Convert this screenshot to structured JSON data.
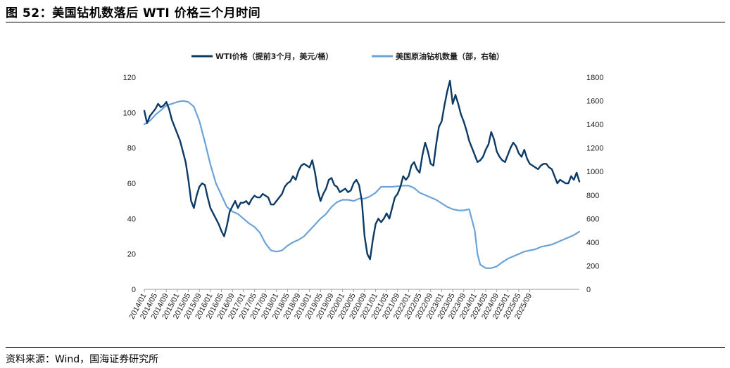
{
  "title": "图 52：美国钻机数落后 WTI 价格三个月时间",
  "source": "资料来源：Wind，国海证券研究所",
  "chart_data": {
    "type": "line",
    "title": "",
    "xlabel": "",
    "ylabel": "",
    "legend_position": "top-center",
    "grid": false,
    "colors": {
      "wti": "#0c3a66",
      "rigs": "#6ba3d8"
    },
    "x_tick_labels": [
      "2014/01",
      "2014/05",
      "2014/09",
      "2015/01",
      "2015/05",
      "2015/09",
      "2016/01",
      "2016/05",
      "2016/09",
      "2017/01",
      "2017/05",
      "2017/09",
      "2018/01",
      "2018/05",
      "2018/09",
      "2019/01",
      "2019/05",
      "2019/09",
      "2020/01",
      "2020/05",
      "2020/09",
      "2021/01",
      "2021/05",
      "2021/09",
      "2022/01",
      "2022/05",
      "2022/09",
      "2023/01",
      "2023/05",
      "2023/09",
      "2024/01",
      "2024/05",
      "2024/09",
      "2025/01",
      "2025/05",
      "2025/09"
    ],
    "y_left": {
      "min": 0,
      "max": 120,
      "ticks": [
        0,
        20,
        40,
        60,
        80,
        100,
        120
      ]
    },
    "y_right": {
      "min": 0,
      "max": 1800,
      "ticks": [
        0,
        200,
        400,
        600,
        800,
        1000,
        1200,
        1400,
        1600,
        1800
      ]
    },
    "series": [
      {
        "name": "WTI价格（提前3个月，美元/桶）",
        "axis": "left",
        "points": [
          [
            "2014/01",
            101
          ],
          [
            "2014/02",
            94
          ],
          [
            "2014/03",
            98
          ],
          [
            "2014/04",
            100
          ],
          [
            "2014/05",
            102
          ],
          [
            "2014/06",
            105
          ],
          [
            "2014/07",
            103
          ],
          [
            "2014/08",
            104
          ],
          [
            "2014/09",
            106
          ],
          [
            "2014/10",
            102
          ],
          [
            "2014/11",
            96
          ],
          [
            "2014/12",
            92
          ],
          [
            "2015/01",
            88
          ],
          [
            "2015/02",
            84
          ],
          [
            "2015/03",
            78
          ],
          [
            "2015/04",
            72
          ],
          [
            "2015/05",
            62
          ],
          [
            "2015/06",
            50
          ],
          [
            "2015/07",
            46
          ],
          [
            "2015/08",
            53
          ],
          [
            "2015/09",
            58
          ],
          [
            "2015/10",
            60
          ],
          [
            "2015/11",
            59
          ],
          [
            "2015/12",
            52
          ],
          [
            "2016/01",
            46
          ],
          [
            "2016/02",
            43
          ],
          [
            "2016/03",
            40
          ],
          [
            "2016/04",
            37
          ],
          [
            "2016/05",
            33
          ],
          [
            "2016/06",
            30
          ],
          [
            "2016/07",
            36
          ],
          [
            "2016/08",
            44
          ],
          [
            "2016/09",
            47
          ],
          [
            "2016/10",
            50
          ],
          [
            "2016/11",
            46
          ],
          [
            "2016/12",
            49
          ],
          [
            "2017/01",
            49
          ],
          [
            "2017/02",
            50
          ],
          [
            "2017/03",
            48
          ],
          [
            "2017/04",
            51
          ],
          [
            "2017/05",
            53
          ],
          [
            "2017/06",
            52
          ],
          [
            "2017/07",
            52
          ],
          [
            "2017/08",
            54
          ],
          [
            "2017/09",
            53
          ],
          [
            "2017/10",
            52
          ],
          [
            "2017/11",
            48
          ],
          [
            "2017/12",
            48
          ],
          [
            "2018/01",
            50
          ],
          [
            "2018/02",
            52
          ],
          [
            "2018/03",
            54
          ],
          [
            "2018/04",
            58
          ],
          [
            "2018/05",
            60
          ],
          [
            "2018/06",
            61
          ],
          [
            "2018/07",
            64
          ],
          [
            "2018/08",
            62
          ],
          [
            "2018/09",
            67
          ],
          [
            "2018/10",
            70
          ],
          [
            "2018/11",
            71
          ],
          [
            "2018/12",
            70
          ],
          [
            "2019/01",
            69
          ],
          [
            "2019/02",
            73
          ],
          [
            "2019/03",
            66
          ],
          [
            "2019/04",
            56
          ],
          [
            "2019/05",
            50
          ],
          [
            "2019/06",
            54
          ],
          [
            "2019/07",
            57
          ],
          [
            "2019/08",
            62
          ],
          [
            "2019/09",
            63
          ],
          [
            "2019/10",
            59
          ],
          [
            "2019/11",
            58
          ],
          [
            "2019/12",
            55
          ],
          [
            "2020/01",
            56
          ],
          [
            "2020/02",
            57
          ],
          [
            "2020/03",
            55
          ],
          [
            "2020/04",
            56
          ],
          [
            "2020/05",
            60
          ],
          [
            "2020/06",
            62
          ],
          [
            "2020/07",
            59
          ],
          [
            "2020/08",
            50
          ],
          [
            "2020/09",
            30
          ],
          [
            "2020/10",
            20
          ],
          [
            "2020/11",
            17
          ],
          [
            "2020/12",
            28
          ],
          [
            "2021/01",
            37
          ],
          [
            "2021/02",
            40
          ],
          [
            "2021/03",
            38
          ],
          [
            "2021/04",
            40
          ],
          [
            "2021/05",
            43
          ],
          [
            "2021/06",
            40
          ],
          [
            "2021/07",
            46
          ],
          [
            "2021/08",
            52
          ],
          [
            "2021/09",
            54
          ],
          [
            "2021/10",
            58
          ],
          [
            "2021/11",
            64
          ],
          [
            "2021/12",
            62
          ],
          [
            "2022/01",
            64
          ],
          [
            "2022/02",
            70
          ],
          [
            "2022/03",
            72
          ],
          [
            "2022/04",
            68
          ],
          [
            "2022/05",
            66
          ],
          [
            "2022/06",
            76
          ],
          [
            "2022/07",
            83
          ],
          [
            "2022/08",
            78
          ],
          [
            "2022/09",
            71
          ],
          [
            "2022/10",
            70
          ],
          [
            "2022/11",
            82
          ],
          [
            "2022/12",
            92
          ],
          [
            "2023/01",
            95
          ],
          [
            "2023/02",
            104
          ],
          [
            "2023/03",
            112
          ],
          [
            "2023/04",
            118
          ],
          [
            "2023/05",
            105
          ],
          [
            "2023/06",
            110
          ],
          [
            "2023/07",
            105
          ],
          [
            "2023/08",
            99
          ],
          [
            "2023/09",
            95
          ],
          [
            "2023/10",
            90
          ],
          [
            "2023/11",
            84
          ],
          [
            "2023/12",
            80
          ],
          [
            "2024/01",
            76
          ],
          [
            "2024/02",
            72
          ],
          [
            "2024/03",
            73
          ],
          [
            "2024/04",
            75
          ],
          [
            "2024/05",
            79
          ],
          [
            "2024/06",
            82
          ],
          [
            "2024/07",
            89
          ],
          [
            "2024/08",
            85
          ],
          [
            "2024/09",
            78
          ],
          [
            "2024/10",
            75
          ],
          [
            "2024/11",
            73
          ],
          [
            "2024/12",
            72
          ],
          [
            "2025/01",
            76
          ],
          [
            "2025/02",
            80
          ],
          [
            "2025/03",
            83
          ],
          [
            "2025/04",
            81
          ],
          [
            "2025/05",
            77
          ],
          [
            "2025/06",
            75
          ],
          [
            "2025/07",
            79
          ],
          [
            "2025/08",
            74
          ],
          [
            "2025/09",
            71
          ],
          [
            "2025/10",
            70
          ],
          [
            "2025/11",
            69
          ],
          [
            "2025/12",
            68
          ],
          [
            "2026/01",
            70
          ],
          [
            "2026/02",
            71
          ],
          [
            "2026/03",
            71
          ],
          [
            "2026/04",
            69
          ],
          [
            "2026/05",
            68
          ],
          [
            "2026/06",
            64
          ],
          [
            "2026/07",
            60
          ],
          [
            "2026/08",
            62
          ],
          [
            "2026/09",
            61
          ],
          [
            "2026/10",
            60
          ],
          [
            "2026/11",
            60
          ],
          [
            "2026/12",
            64
          ],
          [
            "2027/01",
            62
          ],
          [
            "2027/02",
            66
          ],
          [
            "2027/03",
            61
          ]
        ]
      },
      {
        "name": "美国原油钻机数量（部，右轴）",
        "axis": "right",
        "points": [
          [
            "2014/01",
            1400
          ],
          [
            "2014/03",
            1430
          ],
          [
            "2014/05",
            1480
          ],
          [
            "2014/07",
            1520
          ],
          [
            "2014/09",
            1560
          ],
          [
            "2014/11",
            1575
          ],
          [
            "2015/01",
            1590
          ],
          [
            "2015/03",
            1600
          ],
          [
            "2015/05",
            1590
          ],
          [
            "2015/07",
            1550
          ],
          [
            "2015/09",
            1430
          ],
          [
            "2015/11",
            1250
          ],
          [
            "2016/01",
            1060
          ],
          [
            "2016/03",
            900
          ],
          [
            "2016/05",
            800
          ],
          [
            "2016/07",
            700
          ],
          [
            "2016/09",
            660
          ],
          [
            "2016/11",
            640
          ],
          [
            "2017/01",
            600
          ],
          [
            "2017/03",
            560
          ],
          [
            "2017/05",
            530
          ],
          [
            "2017/07",
            480
          ],
          [
            "2017/09",
            390
          ],
          [
            "2017/11",
            330
          ],
          [
            "2018/01",
            320
          ],
          [
            "2018/03",
            330
          ],
          [
            "2018/05",
            370
          ],
          [
            "2018/07",
            400
          ],
          [
            "2018/09",
            420
          ],
          [
            "2018/11",
            450
          ],
          [
            "2019/01",
            500
          ],
          [
            "2019/03",
            550
          ],
          [
            "2019/05",
            600
          ],
          [
            "2019/07",
            640
          ],
          [
            "2019/09",
            700
          ],
          [
            "2019/11",
            740
          ],
          [
            "2020/01",
            760
          ],
          [
            "2020/03",
            760
          ],
          [
            "2020/05",
            750
          ],
          [
            "2020/07",
            770
          ],
          [
            "2020/09",
            770
          ],
          [
            "2020/11",
            790
          ],
          [
            "2021/01",
            820
          ],
          [
            "2021/03",
            870
          ],
          [
            "2021/05",
            870
          ],
          [
            "2021/07",
            870
          ],
          [
            "2021/09",
            875
          ],
          [
            "2021/11",
            880
          ],
          [
            "2022/01",
            880
          ],
          [
            "2022/03",
            860
          ],
          [
            "2022/05",
            820
          ],
          [
            "2022/07",
            800
          ],
          [
            "2022/09",
            780
          ],
          [
            "2022/11",
            760
          ],
          [
            "2023/01",
            730
          ],
          [
            "2023/03",
            700
          ],
          [
            "2023/05",
            680
          ],
          [
            "2023/07",
            670
          ],
          [
            "2023/09",
            670
          ],
          [
            "2023/11",
            680
          ],
          [
            "2024/01",
            500
          ],
          [
            "2024/02",
            300
          ],
          [
            "2024/03",
            210
          ],
          [
            "2024/05",
            180
          ],
          [
            "2024/07",
            180
          ],
          [
            "2024/09",
            195
          ],
          [
            "2024/11",
            230
          ],
          [
            "2025/01",
            260
          ],
          [
            "2025/03",
            280
          ],
          [
            "2025/05",
            300
          ],
          [
            "2025/07",
            320
          ],
          [
            "2025/09",
            330
          ],
          [
            "2025/11",
            340
          ],
          [
            "2026/01",
            360
          ],
          [
            "2026/03",
            370
          ],
          [
            "2026/05",
            380
          ],
          [
            "2026/07",
            400
          ],
          [
            "2026/09",
            420
          ],
          [
            "2026/11",
            440
          ],
          [
            "2027/01",
            460
          ],
          [
            "2027/03",
            490
          ]
        ]
      }
    ]
  }
}
